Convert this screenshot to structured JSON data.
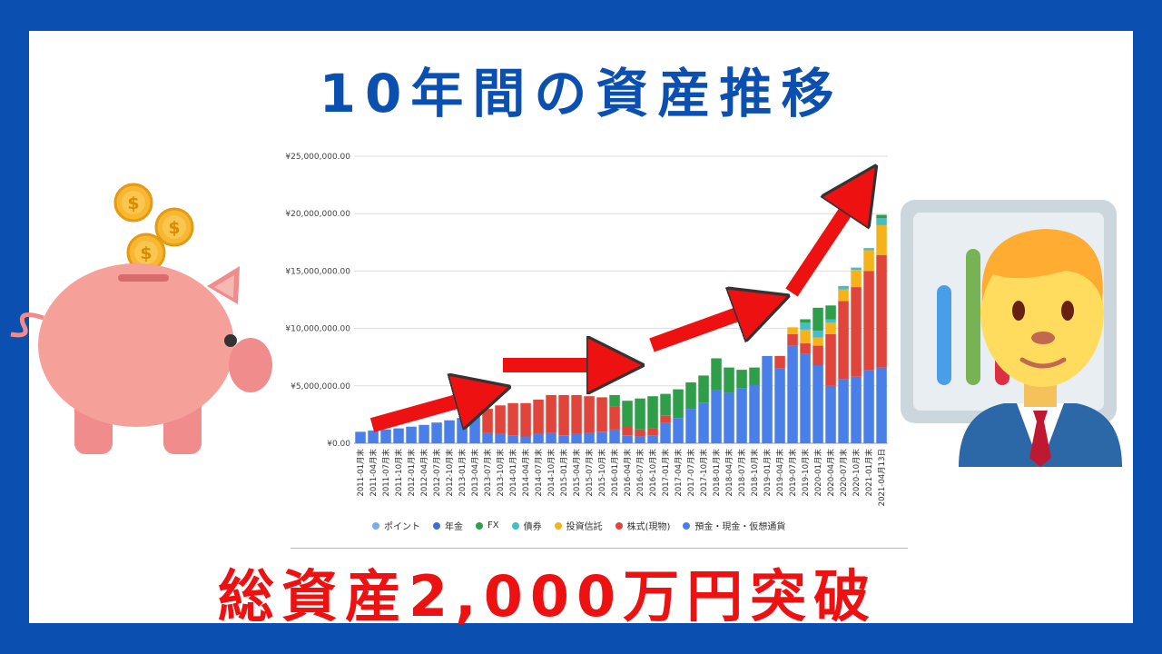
{
  "title": "10年間の資産推移",
  "subtitle": "総資産2,000万円突破",
  "colors": {
    "frame": "#0b4fb0",
    "title": "#0b4fb0",
    "subtitle": "#ee1111",
    "arrow": "#ee1111"
  },
  "icons": [
    "piggy-bank-icon",
    "coin-icon",
    "businessman-icon",
    "chart-board-icon",
    "red-arrow-icon"
  ],
  "chart_data": {
    "type": "bar",
    "stacked": true,
    "ylim": [
      0,
      25000000
    ],
    "yticks": [
      "¥0.00",
      "¥5,000,000.00",
      "¥10,000,000.00",
      "¥15,000,000.00",
      "¥20,000,000.00",
      "¥25,000,000.00"
    ],
    "ytick_values": [
      0,
      5000000,
      10000000,
      15000000,
      20000000,
      25000000
    ],
    "xtick_labels": [
      "2011-01月末",
      "2011-04月末",
      "2011-07月末",
      "2011-10月末",
      "2012-01月末",
      "2012-04月末",
      "2012-07月末",
      "2012-10月末",
      "2013-01月末",
      "2013-04月末",
      "2013-07月末",
      "2013-10月末",
      "2014-01月末",
      "2014-04月末",
      "2014-07月末",
      "2014-10月末",
      "2015-01月末",
      "2015-04月末",
      "2015-07月末",
      "2015-10月末",
      "2016-01月末",
      "2016-04月末",
      "2016-07月末",
      "2016-10月末",
      "2017-01月末",
      "2017-04月末",
      "2017-07月末",
      "2017-10月末",
      "2018-01月末",
      "2018-04月末",
      "2018-07月末",
      "2018-10月末",
      "2019-01月末",
      "2019-04月末",
      "2019-07月末",
      "2019-10月末",
      "2020-01月末",
      "2020-04月末",
      "2020-07月末",
      "2020-10月末",
      "2021-01月末",
      "2021-04月13日"
    ],
    "legend_placement": "bottom",
    "grid": true,
    "series": [
      {
        "name": "ポイント",
        "color": "#7baaf7"
      },
      {
        "name": "年金",
        "color": "#3a6fd8"
      },
      {
        "name": "FX",
        "color": "#2e9e48"
      },
      {
        "name": "債券",
        "color": "#46bdc6"
      },
      {
        "name": "投資信託",
        "color": "#f6b21b"
      },
      {
        "name": "株式(現物)",
        "color": "#e0443a"
      },
      {
        "name": "預金・現金・仮想通貨",
        "color": "#4a7ee8"
      }
    ],
    "series_totals": [
      {
        "x": "2011-01月末",
        "deposit": 1000000,
        "stocks": 0,
        "funds": 0,
        "bonds": 0,
        "fx": 0
      },
      {
        "x": "2011-04月末",
        "deposit": 1100000,
        "stocks": 0,
        "funds": 0,
        "bonds": 0,
        "fx": 0
      },
      {
        "x": "2011-07月末",
        "deposit": 1200000,
        "stocks": 0,
        "funds": 0,
        "bonds": 0,
        "fx": 0
      },
      {
        "x": "2011-10月末",
        "deposit": 1300000,
        "stocks": 0,
        "funds": 0,
        "bonds": 0,
        "fx": 0
      },
      {
        "x": "2012-01月末",
        "deposit": 1450000,
        "stocks": 0,
        "funds": 0,
        "bonds": 0,
        "fx": 0
      },
      {
        "x": "2012-04月末",
        "deposit": 1600000,
        "stocks": 0,
        "funds": 0,
        "bonds": 0,
        "fx": 0
      },
      {
        "x": "2012-07月末",
        "deposit": 1800000,
        "stocks": 0,
        "funds": 0,
        "bonds": 0,
        "fx": 0
      },
      {
        "x": "2012-10月末",
        "deposit": 2000000,
        "stocks": 0,
        "funds": 0,
        "bonds": 0,
        "fx": 0
      },
      {
        "x": "2013-01月末",
        "deposit": 2200000,
        "stocks": 0,
        "funds": 0,
        "bonds": 0,
        "fx": 0
      },
      {
        "x": "2013-04月末",
        "deposit": 2400000,
        "stocks": 0,
        "funds": 0,
        "bonds": 0,
        "fx": 0
      },
      {
        "x": "2013-07月末",
        "deposit": 900000,
        "stocks": 2100000,
        "funds": 0,
        "bonds": 0,
        "fx": 0
      },
      {
        "x": "2013-10月末",
        "deposit": 800000,
        "stocks": 2500000,
        "funds": 0,
        "bonds": 0,
        "fx": 0
      },
      {
        "x": "2014-01月末",
        "deposit": 700000,
        "stocks": 2800000,
        "funds": 0,
        "bonds": 0,
        "fx": 0
      },
      {
        "x": "2014-04月末",
        "deposit": 600000,
        "stocks": 2900000,
        "funds": 0,
        "bonds": 0,
        "fx": 0
      },
      {
        "x": "2014-07月末",
        "deposit": 800000,
        "stocks": 3000000,
        "funds": 0,
        "bonds": 0,
        "fx": 0
      },
      {
        "x": "2014-10月末",
        "deposit": 900000,
        "stocks": 3300000,
        "funds": 0,
        "bonds": 0,
        "fx": 0
      },
      {
        "x": "2015-01月末",
        "deposit": 700000,
        "stocks": 3500000,
        "funds": 0,
        "bonds": 0,
        "fx": 0
      },
      {
        "x": "2015-04月末",
        "deposit": 800000,
        "stocks": 3400000,
        "funds": 0,
        "bonds": 0,
        "fx": 0
      },
      {
        "x": "2015-07月末",
        "deposit": 900000,
        "stocks": 3200000,
        "funds": 0,
        "bonds": 0,
        "fx": 0
      },
      {
        "x": "2015-10月末",
        "deposit": 1000000,
        "stocks": 3000000,
        "funds": 0,
        "bonds": 0,
        "fx": 0
      },
      {
        "x": "2016-01月末",
        "deposit": 1200000,
        "stocks": 2000000,
        "funds": 0,
        "bonds": 0,
        "fx": 1000000
      },
      {
        "x": "2016-04月末",
        "deposit": 700000,
        "stocks": 800000,
        "funds": 0,
        "bonds": 0,
        "fx": 2200000
      },
      {
        "x": "2016-07月末",
        "deposit": 600000,
        "stocks": 600000,
        "funds": 0,
        "bonds": 0,
        "fx": 2700000
      },
      {
        "x": "2016-10月末",
        "deposit": 700000,
        "stocks": 600000,
        "funds": 0,
        "bonds": 0,
        "fx": 2800000
      },
      {
        "x": "2017-01月末",
        "deposit": 1800000,
        "stocks": 600000,
        "funds": 0,
        "bonds": 0,
        "fx": 1900000
      },
      {
        "x": "2017-04月末",
        "deposit": 2200000,
        "stocks": 0,
        "funds": 0,
        "bonds": 0,
        "fx": 2500000
      },
      {
        "x": "2017-07月末",
        "deposit": 3000000,
        "stocks": 0,
        "funds": 0,
        "bonds": 0,
        "fx": 2300000
      },
      {
        "x": "2017-10月末",
        "deposit": 3500000,
        "stocks": 0,
        "funds": 0,
        "bonds": 0,
        "fx": 2400000
      },
      {
        "x": "2018-01月末",
        "deposit": 4600000,
        "stocks": 0,
        "funds": 0,
        "bonds": 0,
        "fx": 2800000
      },
      {
        "x": "2018-04月末",
        "deposit": 4400000,
        "stocks": 0,
        "funds": 0,
        "bonds": 0,
        "fx": 2200000
      },
      {
        "x": "2018-07月末",
        "deposit": 4800000,
        "stocks": 0,
        "funds": 0,
        "bonds": 0,
        "fx": 1600000
      },
      {
        "x": "2018-10月末",
        "deposit": 5100000,
        "stocks": 0,
        "funds": 0,
        "bonds": 0,
        "fx": 1500000
      },
      {
        "x": "2019-01月末",
        "deposit": 7600000,
        "stocks": 0,
        "funds": 0,
        "bonds": 0,
        "fx": 0
      },
      {
        "x": "2019-04月末",
        "deposit": 6500000,
        "stocks": 1100000,
        "funds": 0,
        "bonds": 0,
        "fx": 0
      },
      {
        "x": "2019-07月末",
        "deposit": 8500000,
        "stocks": 1000000,
        "funds": 600000,
        "bonds": 0,
        "fx": 0
      },
      {
        "x": "2019-10月末",
        "deposit": 7800000,
        "stocks": 900000,
        "funds": 1200000,
        "bonds": 600000,
        "fx": 300000
      },
      {
        "x": "2020-01月末",
        "deposit": 6800000,
        "stocks": 1700000,
        "funds": 700000,
        "bonds": 600000,
        "fx": 2000000
      },
      {
        "x": "2020-04月末",
        "deposit": 5000000,
        "stocks": 4500000,
        "funds": 1000000,
        "bonds": 300000,
        "fx": 1200000
      },
      {
        "x": "2020-07月末",
        "deposit": 5600000,
        "stocks": 6800000,
        "funds": 1000000,
        "bonds": 300000,
        "fx": 0
      },
      {
        "x": "2020-10月末",
        "deposit": 5800000,
        "stocks": 7800000,
        "funds": 1500000,
        "bonds": 200000,
        "fx": 0
      },
      {
        "x": "2021-01月末",
        "deposit": 6400000,
        "stocks": 8600000,
        "funds": 1800000,
        "bonds": 200000,
        "fx": 0
      },
      {
        "x": "2021-04月13日",
        "deposit": 6600000,
        "stocks": 9800000,
        "funds": 2600000,
        "bonds": 600000,
        "fx": 300000
      }
    ]
  }
}
